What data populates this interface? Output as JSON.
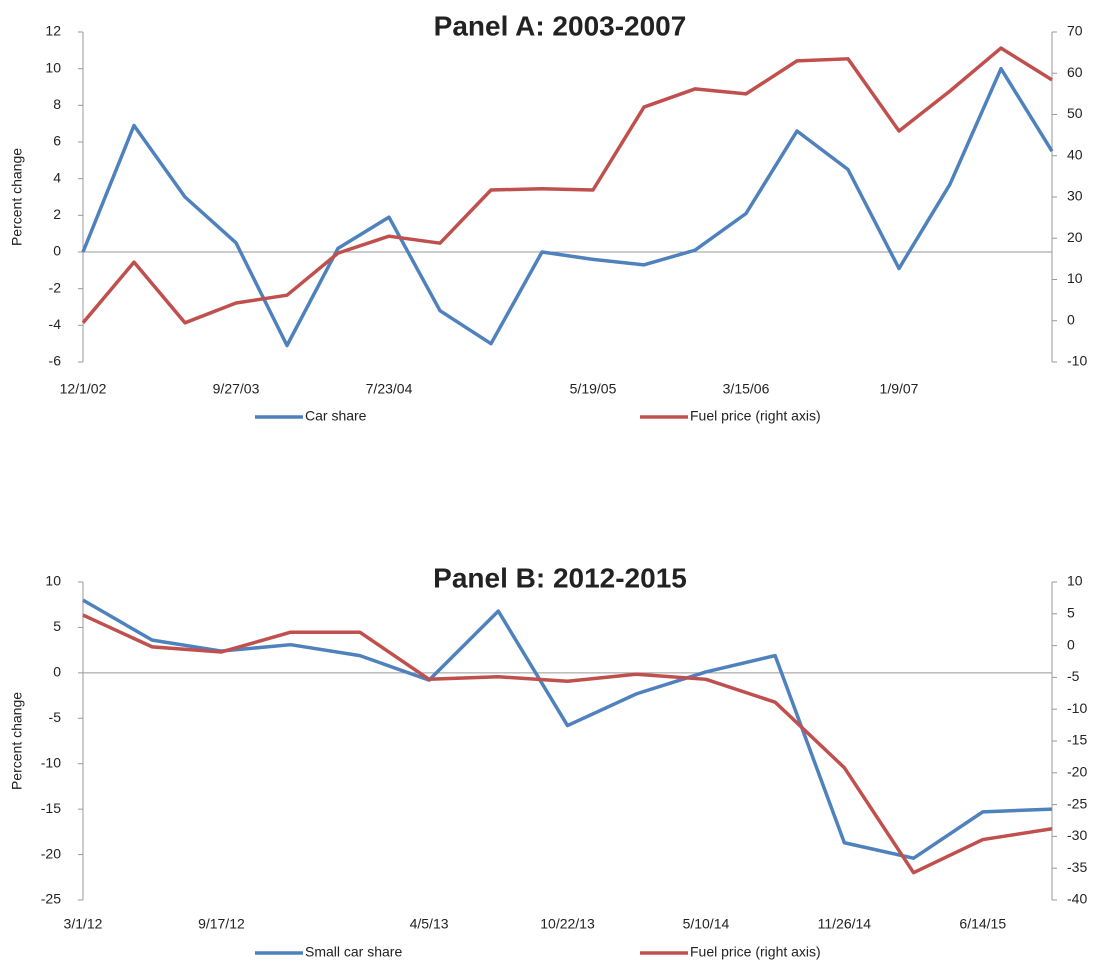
{
  "chart_data": [
    {
      "type": "line",
      "title": "Panel A: 2003-2007",
      "ylabel": "Percent change",
      "categories": [
        "12/1/02",
        null,
        null,
        "9/27/03",
        null,
        null,
        "7/23/04",
        null,
        null,
        null,
        "5/19/05",
        null,
        null,
        "3/15/06",
        null,
        null,
        "1/9/07",
        null,
        null,
        null
      ],
      "series": [
        {
          "name": "Car share",
          "color": "#4f81bd",
          "axis": "y",
          "values": [
            0,
            6.9,
            3,
            0.5,
            -5.1,
            0.2,
            1.9,
            -3.2,
            -5,
            0,
            -0.4,
            -0.7,
            0.1,
            2.1,
            6.6,
            4.5,
            -0.9,
            3.7,
            10,
            5.5
          ]
        },
        {
          "name": "Fuel price (right axis)",
          "color": "#c0504d",
          "axis": "y2",
          "values": [
            -0.5,
            14.2,
            -0.5,
            4.3,
            6.2,
            16.4,
            20.5,
            18.8,
            31.7,
            32,
            31.7,
            51.8,
            56.2,
            55,
            63,
            63.5,
            46,
            55.7,
            66.1,
            58.4
          ]
        }
      ],
      "ylim": [
        -6,
        12
      ],
      "yticks": [
        -6,
        -4,
        -2,
        0,
        2,
        4,
        6,
        8,
        10,
        12
      ],
      "y2lim": [
        -10,
        70
      ],
      "y2ticks": [
        -10,
        0,
        10,
        20,
        30,
        40,
        50,
        60,
        70
      ],
      "zero_line": true,
      "legend": "bottom"
    },
    {
      "type": "line",
      "title": "Panel B: 2012-2015",
      "ylabel": "Percent change",
      "categories": [
        "3/1/12",
        null,
        "9/17/12",
        null,
        null,
        "4/5/13",
        null,
        "10/22/13",
        null,
        "5/10/14",
        null,
        "11/26/14",
        null,
        "6/14/15",
        null
      ],
      "series": [
        {
          "name": "Small car share",
          "color": "#4f81bd",
          "axis": "y",
          "values": [
            8,
            3.6,
            2.4,
            3.1,
            1.9,
            -0.8,
            6.8,
            -5.8,
            -2.3,
            0.1,
            1.9,
            -18.7,
            -20.4,
            -15.3,
            -15
          ]
        },
        {
          "name": "Fuel price (right axis)",
          "color": "#c0504d",
          "axis": "y2",
          "values": [
            4.8,
            -0.2,
            -1,
            2.1,
            2.1,
            -5.3,
            -4.9,
            -5.6,
            -4.5,
            -5.3,
            -8.9,
            -19.2,
            -35.7,
            -30.5,
            -28.8
          ]
        }
      ],
      "ylim": [
        -25,
        10
      ],
      "yticks": [
        -25,
        -20,
        -15,
        -10,
        -5,
        0,
        5,
        10
      ],
      "y2lim": [
        -40,
        10
      ],
      "y2ticks": [
        -40,
        -35,
        -30,
        -25,
        -20,
        -15,
        -10,
        -5,
        0,
        5,
        10
      ],
      "zero_line": true,
      "legend": "bottom"
    }
  ]
}
